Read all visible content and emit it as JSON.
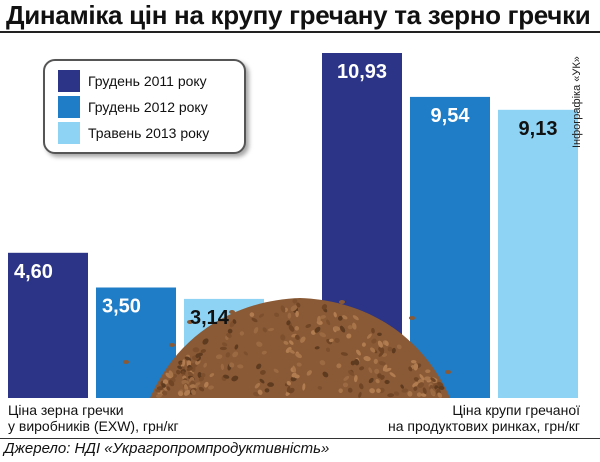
{
  "header": {
    "title": "Динаміка цін на крупу гречану та зерно гречки",
    "credit": "Інфографіка «УК»"
  },
  "footer": {
    "source": "Джерело: НДІ «Украгропромпродуктивність»"
  },
  "colors": {
    "dec2011": "#2b3486",
    "dec2012": "#1f7cc6",
    "may2013": "#8fd3f4",
    "value_dark": "#111111",
    "value_light": "#ffffff",
    "buckwheat": "#8a5a36"
  },
  "chart_data": {
    "type": "bar",
    "title": "Динаміка цін на крупу гречану та зерно гречки",
    "categories": [
      "Ціна зерна гречки у виробників (EXW), грн/кг",
      "Ціна крупи гречаної на продуктових ринках, грн/кг"
    ],
    "category_lines": [
      [
        "Ціна зерна гречки",
        "у виробників (EXW), грн/кг"
      ],
      [
        "Ціна крупи гречаної",
        "на продуктових ринках, грн/кг"
      ]
    ],
    "series": [
      {
        "name": "Грудень 2011 року",
        "values": [
          4.6,
          10.93
        ],
        "labels": [
          "4,60",
          "10,93"
        ],
        "color": "#2b3486"
      },
      {
        "name": "Грудень 2012 року",
        "values": [
          3.5,
          9.54
        ],
        "labels": [
          "3,50",
          "9,54"
        ],
        "color": "#1f7cc6"
      },
      {
        "name": "Травень 2013 року",
        "values": [
          3.14,
          9.13
        ],
        "labels": [
          "3,14",
          "9,13"
        ],
        "color": "#8fd3f4"
      }
    ],
    "ylim": [
      0,
      11.5
    ],
    "grid": false,
    "legend": "top-left"
  }
}
